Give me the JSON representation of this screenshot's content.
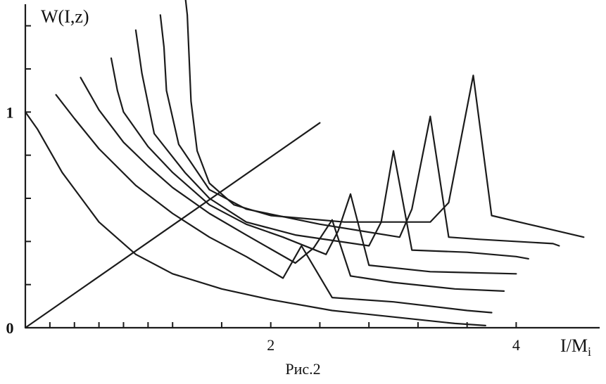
{
  "chart_data": {
    "type": "line",
    "title": "",
    "ylabel": "W(I,z)",
    "xlabel_main": "I/M",
    "xlabel_sub": "i",
    "xlim": [
      0,
      4.6
    ],
    "ylim": [
      0,
      1.5
    ],
    "x_ticks": [
      {
        "value": 0.2,
        "label": ""
      },
      {
        "value": 0.4,
        "label": ""
      },
      {
        "value": 0.6,
        "label": ""
      },
      {
        "value": 0.8,
        "label": ""
      },
      {
        "value": 1.0,
        "label": ""
      },
      {
        "value": 1.2,
        "label": ""
      },
      {
        "value": 1.6,
        "label": ""
      },
      {
        "value": 2.0,
        "label": "2"
      },
      {
        "value": 2.4,
        "label": ""
      },
      {
        "value": 2.8,
        "label": ""
      },
      {
        "value": 3.2,
        "label": ""
      },
      {
        "value": 3.6,
        "label": ""
      },
      {
        "value": 4.0,
        "label": "4"
      }
    ],
    "y_ticks": [
      {
        "value": 0,
        "label": "0"
      },
      {
        "value": 0.2,
        "label": ""
      },
      {
        "value": 0.4,
        "label": ""
      },
      {
        "value": 0.6,
        "label": ""
      },
      {
        "value": 0.8,
        "label": ""
      },
      {
        "value": 1.0,
        "label": "1"
      },
      {
        "value": 1.2,
        "label": ""
      },
      {
        "value": 1.4,
        "label": ""
      }
    ],
    "grid": false,
    "legend": "none",
    "series": [
      {
        "x": [
          0.0,
          0.1,
          0.3,
          0.6,
          0.9,
          1.2,
          1.6,
          2.0,
          2.5,
          3.0,
          3.5,
          3.75
        ],
        "y": [
          1.0,
          0.92,
          0.72,
          0.49,
          0.34,
          0.25,
          0.18,
          0.13,
          0.08,
          0.05,
          0.02,
          0.01
        ]
      },
      {
        "x": [
          0.25,
          0.4,
          0.6,
          0.9,
          1.2,
          1.5,
          1.8,
          2.1,
          2.2,
          2.25,
          2.5,
          3.0,
          3.6,
          3.8
        ],
        "y": [
          1.08,
          0.97,
          0.83,
          0.66,
          0.53,
          0.42,
          0.33,
          0.23,
          0.33,
          0.38,
          0.14,
          0.12,
          0.08,
          0.07
        ]
      },
      {
        "x": [
          0.45,
          0.6,
          0.8,
          1.0,
          1.2,
          1.5,
          1.8,
          2.2,
          2.35,
          2.5,
          2.65,
          3.0,
          3.5,
          3.9
        ],
        "y": [
          1.16,
          1.01,
          0.86,
          0.75,
          0.65,
          0.53,
          0.43,
          0.3,
          0.37,
          0.5,
          0.24,
          0.21,
          0.18,
          0.17
        ]
      },
      {
        "x": [
          0.7,
          0.75,
          0.8,
          1.0,
          1.2,
          1.5,
          1.8,
          2.1,
          2.45,
          2.55,
          2.65,
          2.8,
          3.3,
          4.0
        ],
        "y": [
          1.25,
          1.1,
          1.0,
          0.84,
          0.72,
          0.57,
          0.48,
          0.42,
          0.34,
          0.45,
          0.62,
          0.29,
          0.26,
          0.25
        ]
      },
      {
        "x": [
          0.9,
          0.95,
          1.05,
          1.3,
          1.5,
          1.8,
          2.2,
          2.8,
          2.9,
          3.0,
          3.15,
          3.6,
          4.0,
          4.1
        ],
        "y": [
          1.38,
          1.18,
          0.9,
          0.72,
          0.6,
          0.49,
          0.43,
          0.38,
          0.49,
          0.82,
          0.36,
          0.35,
          0.33,
          0.32
        ]
      },
      {
        "x": [
          1.1,
          1.13,
          1.15,
          1.25,
          1.5,
          1.8,
          2.4,
          3.05,
          3.15,
          3.3,
          3.45,
          3.7,
          4.3,
          4.35
        ],
        "y": [
          1.45,
          1.3,
          1.1,
          0.85,
          0.64,
          0.55,
          0.48,
          0.42,
          0.55,
          0.98,
          0.42,
          0.41,
          0.39,
          0.38
        ]
      },
      {
        "x": [
          1.3,
          1.32,
          1.35,
          1.4,
          1.5,
          1.7,
          2.0,
          2.6,
          3.3,
          3.45,
          3.65,
          3.8,
          4.1,
          4.55
        ],
        "y": [
          1.55,
          1.45,
          1.05,
          0.82,
          0.67,
          0.57,
          0.52,
          0.49,
          0.49,
          0.58,
          1.17,
          0.52,
          0.48,
          0.42
        ]
      },
      {
        "x": [
          0.0,
          2.4
        ],
        "y": [
          0.0,
          0.95
        ]
      }
    ]
  },
  "figure": {
    "caption": "Рис.2"
  },
  "colors": {
    "ink": "#1b1b1b",
    "paper": "#ffffff"
  }
}
